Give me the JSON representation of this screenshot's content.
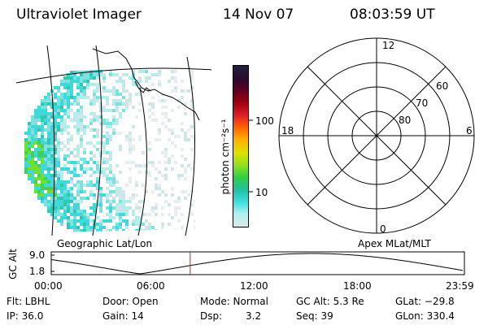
{
  "header": {
    "instrument": "Ultraviolet Imager",
    "date": "14 Nov 07",
    "time": "08:03:59 UT"
  },
  "colorbar": {
    "label": "photon cm⁻²s⁻¹",
    "ticks": [
      "100",
      "10"
    ],
    "colors": [
      "#202040",
      "#2a0a30",
      "#5c0020",
      "#a00010",
      "#e0202a",
      "#ff6000",
      "#ffb000",
      "#e0e000",
      "#90e020",
      "#30d040",
      "#20c0a0",
      "#40e0e0",
      "#b0f0f0",
      "#e0e8e8"
    ]
  },
  "image_panel": {
    "label": "Geographic Lat/Lon"
  },
  "polar_plot": {
    "label": "Apex MLat/MLT",
    "mlt_labels": {
      "top": "12",
      "left": "18",
      "right": "6",
      "bottom": "0"
    },
    "lat_labels": [
      "60",
      "70",
      "80"
    ]
  },
  "orbit_plot": {
    "ylabel": "GC Alt",
    "ytick_top": "9.0",
    "ytick_bottom": "1.8",
    "xticks": [
      "00:00",
      "06:00",
      "12:00",
      "18:00",
      "23:59"
    ],
    "current_time_hours": 8.07,
    "marker_color": "#cc2222"
  },
  "info": {
    "filter": "Flt: LBHL",
    "door": "Door: Open",
    "mode": "Mode: Normal",
    "gc_alt": "GC Alt: 5.3 Re",
    "glat": "GLat: −29.8",
    "ip": "IP: 36.0",
    "gain": "Gain: 14",
    "dsp_label": "Dsp:",
    "dsp_value": "3.2",
    "seq": "Seq: 39",
    "glon": "GLon: 330.4"
  }
}
